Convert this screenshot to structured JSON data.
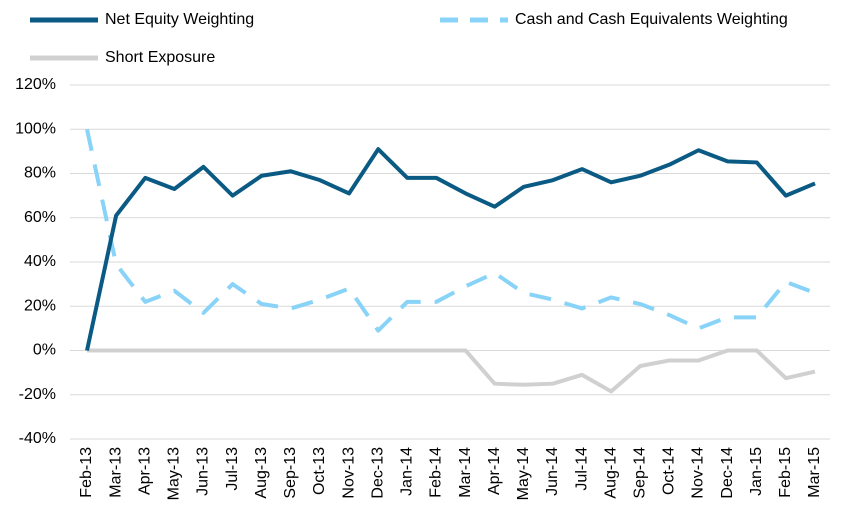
{
  "chart_data": {
    "type": "line",
    "categories": [
      "Feb-13",
      "Mar-13",
      "Apr-13",
      "May-13",
      "Jun-13",
      "Jul-13",
      "Aug-13",
      "Sep-13",
      "Oct-13",
      "Nov-13",
      "Dec-13",
      "Jan-14",
      "Feb-14",
      "Mar-14",
      "Apr-14",
      "May-14",
      "Jun-14",
      "Jul-14",
      "Aug-14",
      "Sep-14",
      "Oct-14",
      "Nov-14",
      "Dec-14",
      "Jan-15",
      "Feb-15",
      "Mar-15"
    ],
    "series": [
      {
        "name": "Net Equity Weighting",
        "color": "#0a5a84",
        "dash": "solid",
        "values": [
          0,
          61,
          78,
          73,
          83,
          70,
          79,
          81,
          77,
          71,
          91,
          78,
          78,
          71,
          65,
          74,
          77,
          82,
          76,
          79,
          84,
          90.5,
          85.5,
          85,
          70,
          75.5
        ]
      },
      {
        "name": "Cash and Cash Equivalents Weighting",
        "color": "#88d3f7",
        "dash": "dashed",
        "values": [
          100,
          39,
          22,
          27,
          17,
          30,
          21,
          19,
          23,
          28,
          9,
          22,
          22,
          29,
          35,
          26,
          23,
          19,
          24,
          21,
          16,
          10,
          15,
          15,
          31,
          26
        ]
      },
      {
        "name": "Short Exposure",
        "color": "#d0d0d0",
        "dash": "solid",
        "values": [
          0,
          0,
          0,
          0,
          0,
          0,
          0,
          0,
          0,
          0,
          0,
          0,
          0,
          0,
          -15,
          -15.5,
          -15,
          -11,
          -18.5,
          -7,
          -4.5,
          -4.5,
          0,
          0,
          -12.5,
          -9.5
        ]
      }
    ],
    "ylim": [
      -40,
      120
    ],
    "yticks": [
      {
        "value": -40,
        "label": "-40%"
      },
      {
        "value": -20,
        "label": "-20%"
      },
      {
        "value": 0,
        "label": "0%"
      },
      {
        "value": 20,
        "label": "20%"
      },
      {
        "value": 40,
        "label": "40%"
      },
      {
        "value": 60,
        "label": "60%"
      },
      {
        "value": 80,
        "label": "80%"
      },
      {
        "value": 100,
        "label": "100%"
      },
      {
        "value": 120,
        "label": "120%"
      }
    ],
    "grid": true,
    "legend": "top"
  }
}
